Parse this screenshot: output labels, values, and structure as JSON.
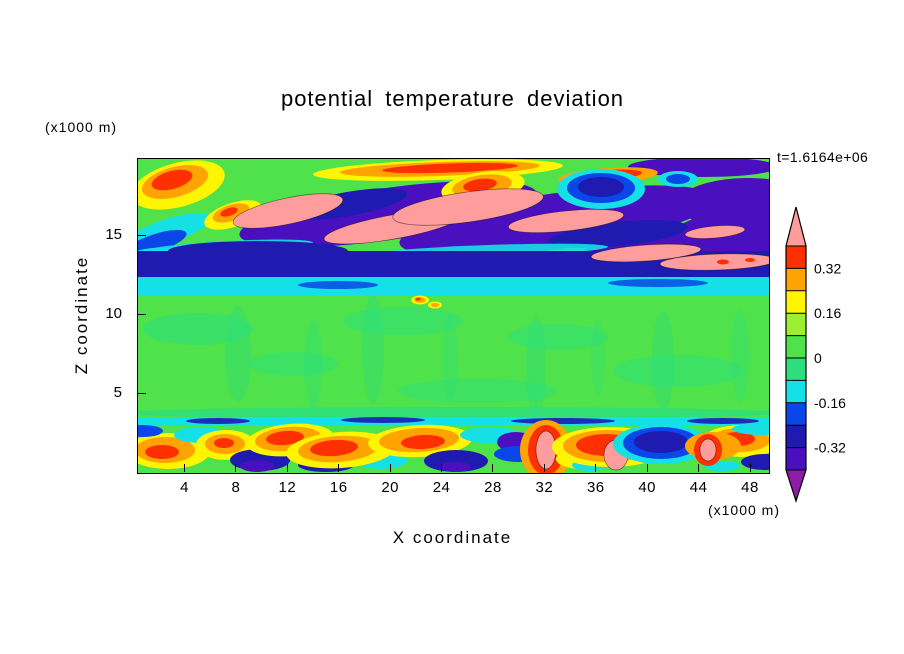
{
  "title": "potential temperature deviation",
  "time_label": "t=1.6164e+06",
  "axes": {
    "x": {
      "label": "X coordinate",
      "units": "(x1000 m)",
      "ticks": [
        4,
        8,
        12,
        16,
        20,
        24,
        28,
        32,
        36,
        40,
        44,
        48
      ],
      "range": [
        0.3,
        49.4
      ]
    },
    "z": {
      "label": "Z coordinate",
      "units": "(x1000 m)",
      "ticks": [
        5,
        10,
        15
      ],
      "range": [
        0,
        19.9
      ]
    }
  },
  "colorbar": {
    "orientation": "vertical",
    "tick_labels": [
      "0.32",
      "0.16",
      "0",
      "-0.16",
      "-0.32"
    ],
    "bands_top_to_bottom": [
      "red",
      "orange",
      "yellow",
      "greenyellow",
      "green",
      "teal",
      "cyan",
      "blue",
      "navy",
      "violet"
    ],
    "arrow_top_color": "salmon",
    "arrow_bottom_color": "purple"
  },
  "chart_data": {
    "type": "heatmap",
    "subtype": "filled_contour",
    "title": "potential temperature deviation",
    "xlabel": "X coordinate (x1000 m)",
    "ylabel": "Z coordinate (x1000 m)",
    "time_label": "t=1.6164e+06",
    "x_ticks": [
      4,
      8,
      12,
      16,
      20,
      24,
      28,
      32,
      36,
      40,
      44,
      48
    ],
    "y_ticks": [
      5,
      10,
      15
    ],
    "x_range": [
      0.3,
      49.4
    ],
    "y_range": [
      0,
      19.9
    ],
    "contour_interval": 0.08,
    "levels": [
      -0.4,
      -0.32,
      -0.24,
      -0.16,
      -0.08,
      0,
      0.08,
      0.16,
      0.24,
      0.32,
      0.4
    ],
    "band_colors_ascending": [
      "violet",
      "navy",
      "blue",
      "cyan",
      "teal",
      "green",
      "greenyellow",
      "yellow",
      "orange",
      "red"
    ],
    "below_min_color": "purple",
    "above_max_color": "salmon",
    "colorbar_labels": [
      "0.32",
      "0.16",
      "0",
      "-0.16",
      "-0.32"
    ],
    "colors": {
      "purple": "#8E1CA8",
      "violet": "#4A10C0",
      "navy": "#1F1AB0",
      "blue": "#0A46E8",
      "cyan": "#15E0E5",
      "teal": "#2BDF7E",
      "green": "#4FE24A",
      "greenyellow": "#9CEF2F",
      "yellow": "#FFF500",
      "orange": "#FFA300",
      "red": "#FF3000",
      "salmon": "#FF9D9D"
    },
    "regions": [
      "z ~13-20 km: wavy breaking-wave structures; elongated salmon (>0.4) lenses embedded in violet/navy negative anomalies, red/orange/yellow warm patches near top-left and top-center, deep blue blob upper right",
      "z ~12-13 km: continuous navy negative band over a cyan band spanning the full domain",
      "z ~4-11 km: nearly uniform green (~0) with faint teal streaks and two tiny warm specks near x=21-23",
      "z ~0-4 km: turbulent boundary layer; alternating red/orange/yellow plumes, salmon cores, navy/violet pockets and cyan patches above a thin cyan lid"
    ],
    "scene": {
      "background": "green",
      "shapes": [
        [
          "e",
          60,
          170,
          55,
          16,
          0,
          "teal",
          0.55
        ],
        [
          "e",
          155,
          205,
          45,
          12,
          0,
          "teal",
          0.5
        ],
        [
          "e",
          265,
          162,
          60,
          14,
          0,
          "teal",
          0.5
        ],
        [
          "e",
          420,
          178,
          50,
          13,
          0,
          "teal",
          0.5
        ],
        [
          "e",
          540,
          212,
          65,
          16,
          0,
          "teal",
          0.5
        ],
        [
          "e",
          340,
          232,
          80,
          12,
          0,
          "teal",
          0.45
        ],
        [
          "e",
          100,
          195,
          13,
          48,
          0,
          "teal",
          0.4
        ],
        [
          "e",
          175,
          205,
          9,
          45,
          0,
          "teal",
          0.35
        ],
        [
          "e",
          235,
          190,
          11,
          55,
          0,
          "teal",
          0.4
        ],
        [
          "e",
          312,
          198,
          8,
          42,
          0,
          "teal",
          0.35
        ],
        [
          "e",
          398,
          208,
          10,
          50,
          0,
          "teal",
          0.4
        ],
        [
          "e",
          460,
          198,
          7,
          38,
          0,
          "teal",
          0.3
        ],
        [
          "e",
          525,
          202,
          11,
          50,
          0,
          "teal",
          0.4
        ],
        [
          "e",
          602,
          197,
          9,
          46,
          0,
          "teal",
          0.35
        ],
        [
          "e",
          315,
          254,
          330,
          6,
          0,
          "teal",
          0.8
        ],
        [
          "e",
          30,
          72,
          45,
          12,
          -18,
          "cyan"
        ],
        [
          "e",
          18,
          84,
          32,
          9,
          -18,
          "blue"
        ],
        [
          "e",
          8,
          100,
          30,
          10,
          -10,
          "cyan"
        ],
        [
          "e",
          250,
          55,
          150,
          26,
          -8,
          "violet"
        ],
        [
          "e",
          420,
          62,
          160,
          28,
          -8,
          "violet"
        ],
        [
          "e",
          555,
          85,
          110,
          20,
          -5,
          "violet"
        ],
        [
          "e",
          565,
          8,
          75,
          10,
          0,
          "violet"
        ],
        [
          "e",
          610,
          45,
          70,
          26,
          0,
          "violet"
        ],
        [
          "e",
          600,
          72,
          60,
          18,
          0,
          "violet"
        ],
        [
          "e",
          210,
          45,
          60,
          12,
          -10,
          "navy"
        ],
        [
          "e",
          480,
          75,
          70,
          12,
          -6,
          "navy"
        ],
        [
          "e",
          90,
          88,
          85,
          6,
          -3,
          "cyan",
          0.9
        ],
        [
          "e",
          350,
          92,
          120,
          6,
          -2,
          "cyan",
          0.9
        ],
        [
          "r",
          -5,
          92,
          641,
          26,
          0,
          "navy"
        ],
        [
          "e",
          120,
          92,
          90,
          10,
          0,
          "navy"
        ],
        [
          "e",
          400,
          116,
          120,
          9,
          0,
          "navy"
        ],
        [
          "r",
          -5,
          118,
          641,
          18,
          0,
          "cyan"
        ],
        [
          "e",
          200,
          126,
          40,
          4,
          0,
          "blue",
          0.85
        ],
        [
          "e",
          520,
          124,
          50,
          4,
          0,
          "blue",
          0.85
        ],
        [
          "e",
          40,
          26,
          48,
          22,
          -15,
          "yellow"
        ],
        [
          "e",
          37,
          23,
          34,
          15,
          -15,
          "orange"
        ],
        [
          "e",
          34,
          21,
          21,
          9,
          -15,
          "red"
        ],
        [
          "e",
          95,
          56,
          30,
          12,
          -18,
          "yellow"
        ],
        [
          "e",
          93,
          54,
          19,
          8,
          -18,
          "orange"
        ],
        [
          "e",
          91,
          53,
          9,
          4,
          -18,
          "red"
        ],
        [
          "e",
          300,
          11,
          125,
          10,
          -2,
          "yellow"
        ],
        [
          "e",
          302,
          10,
          100,
          7,
          -2,
          "orange"
        ],
        [
          "e",
          312,
          9,
          68,
          4.5,
          -2,
          "red"
        ],
        [
          "e",
          345,
          28,
          42,
          15,
          -8,
          "yellow"
        ],
        [
          "e",
          344,
          27,
          30,
          11,
          -8,
          "orange"
        ],
        [
          "e",
          342,
          26,
          17,
          6,
          -8,
          "red"
        ],
        [
          "e",
          470,
          17,
          50,
          8,
          -4,
          "orange"
        ],
        [
          "e",
          472,
          16,
          32,
          5,
          -4,
          "red"
        ],
        [
          "e",
          463,
          30,
          44,
          20,
          0,
          "cyan"
        ],
        [
          "e",
          463,
          29,
          34,
          15,
          0,
          "blue"
        ],
        [
          "e",
          463,
          28,
          23,
          10,
          0,
          "navy"
        ],
        [
          "e",
          540,
          20,
          20,
          8,
          0,
          "cyan"
        ],
        [
          "e",
          540,
          20,
          12,
          5,
          0,
          "blue"
        ],
        [
          "e",
          150,
          52,
          56,
          13,
          -12,
          "salmon",
          1,
          1
        ],
        [
          "e",
          255,
          68,
          70,
          12,
          -10,
          "salmon",
          1,
          1
        ],
        [
          "e",
          330,
          48,
          76,
          15,
          -8,
          "salmon",
          1,
          1
        ],
        [
          "e",
          428,
          62,
          58,
          10,
          -6,
          "salmon",
          1,
          1
        ],
        [
          "e",
          508,
          94,
          55,
          8,
          -4,
          "salmon",
          1,
          1
        ],
        [
          "e",
          580,
          103,
          58,
          8,
          -2,
          "salmon",
          1,
          1
        ],
        [
          "e",
          577,
          73,
          30,
          6,
          -5,
          "salmon",
          1,
          1
        ],
        [
          "e",
          585,
          103,
          6,
          2.5,
          0,
          "red"
        ],
        [
          "e",
          612,
          101,
          5,
          2,
          0,
          "red"
        ],
        [
          "e",
          282,
          141,
          9,
          4.5,
          0,
          "yellow"
        ],
        [
          "e",
          282,
          141,
          5.5,
          2.8,
          0,
          "orange"
        ],
        [
          "e",
          280,
          140,
          2.8,
          1.5,
          0,
          "red"
        ],
        [
          "e",
          297,
          146,
          7,
          3.5,
          0,
          "yellow"
        ],
        [
          "e",
          297,
          146,
          4,
          2,
          0,
          "orange"
        ],
        [
          "r",
          -5,
          258,
          641,
          9,
          0,
          "cyan"
        ],
        [
          "e",
          80,
          262,
          32,
          3,
          0,
          "navy",
          0.9
        ],
        [
          "e",
          245,
          261,
          42,
          3,
          0,
          "navy",
          0.9
        ],
        [
          "e",
          425,
          262,
          52,
          3,
          0,
          "navy",
          0.9
        ],
        [
          "e",
          585,
          262,
          36,
          3,
          0,
          "navy",
          0.9
        ],
        [
          "e",
          30,
          292,
          42,
          18,
          0,
          "yellow"
        ],
        [
          "e",
          27,
          291,
          30,
          13,
          0,
          "orange"
        ],
        [
          "e",
          24,
          293,
          17,
          7,
          0,
          "red"
        ],
        [
          "e",
          62,
          276,
          26,
          8,
          0,
          "cyan"
        ],
        [
          "e",
          5,
          272,
          20,
          6,
          0,
          "blue"
        ],
        [
          "e",
          88,
          286,
          30,
          15,
          0,
          "yellow"
        ],
        [
          "e",
          87,
          285,
          20,
          10,
          0,
          "orange"
        ],
        [
          "e",
          86,
          284,
          10,
          5,
          0,
          "red"
        ],
        [
          "e",
          122,
          301,
          30,
          11,
          0,
          "navy"
        ],
        [
          "e",
          119,
          307,
          17,
          6,
          0,
          "violet"
        ],
        [
          "e",
          152,
          281,
          44,
          16,
          -5,
          "yellow"
        ],
        [
          "e",
          150,
          280,
          33,
          12,
          -5,
          "orange"
        ],
        [
          "e",
          147,
          279,
          19,
          7,
          -5,
          "red"
        ],
        [
          "e",
          188,
          306,
          28,
          7,
          0,
          "navy"
        ],
        [
          "e",
          243,
          301,
          26,
          9,
          0,
          "cyan"
        ],
        [
          "e",
          203,
          291,
          55,
          18,
          -4,
          "yellow"
        ],
        [
          "e",
          200,
          290,
          40,
          13,
          -4,
          "orange"
        ],
        [
          "e",
          196,
          289,
          24,
          8,
          -4,
          "red"
        ],
        [
          "e",
          282,
          282,
          52,
          16,
          -3,
          "yellow"
        ],
        [
          "e",
          281,
          281,
          40,
          12,
          -3,
          "orange"
        ],
        [
          "e",
          285,
          283,
          22,
          7,
          -3,
          "red"
        ],
        [
          "e",
          318,
          302,
          32,
          11,
          0,
          "navy"
        ],
        [
          "e",
          317,
          308,
          16,
          5,
          0,
          "violet"
        ],
        [
          "e",
          352,
          276,
          30,
          8,
          0,
          "cyan"
        ],
        [
          "e",
          378,
          283,
          19,
          10,
          0,
          "violet"
        ],
        [
          "e",
          380,
          295,
          24,
          8,
          0,
          "blue"
        ],
        [
          "e",
          408,
          291,
          26,
          30,
          0,
          "orange"
        ],
        [
          "e",
          408,
          291,
          18,
          25,
          0,
          "red"
        ],
        [
          "e",
          408,
          291,
          10,
          19,
          0,
          "salmon",
          1,
          1
        ],
        [
          "e",
          444,
          300,
          26,
          10,
          0,
          "yellow"
        ],
        [
          "e",
          452,
          306,
          18,
          6,
          0,
          "cyan"
        ],
        [
          "e",
          472,
          288,
          58,
          20,
          0,
          "yellow"
        ],
        [
          "e",
          470,
          287,
          45,
          16,
          0,
          "orange"
        ],
        [
          "e",
          468,
          286,
          30,
          11,
          0,
          "red"
        ],
        [
          "e",
          478,
          296,
          12,
          15,
          0,
          "salmon",
          1,
          1
        ],
        [
          "e",
          523,
          285,
          48,
          20,
          0,
          "cyan"
        ],
        [
          "e",
          523,
          284,
          38,
          16,
          0,
          "blue"
        ],
        [
          "e",
          523,
          283,
          27,
          11,
          0,
          "navy"
        ],
        [
          "e",
          604,
          282,
          40,
          16,
          0,
          "yellow"
        ],
        [
          "e",
          602,
          281,
          30,
          12,
          0,
          "orange"
        ],
        [
          "e",
          600,
          280,
          17,
          7,
          0,
          "red"
        ],
        [
          "e",
          624,
          270,
          30,
          6,
          0,
          "cyan"
        ],
        [
          "e",
          627,
          303,
          24,
          8,
          0,
          "navy"
        ],
        [
          "e",
          584,
          307,
          18,
          5,
          0,
          "cyan"
        ],
        [
          "e",
          575,
          287,
          28,
          14,
          0,
          "orange"
        ],
        [
          "e",
          570,
          291,
          14,
          16,
          0,
          "red"
        ],
        [
          "e",
          570,
          291,
          8,
          11,
          0,
          "salmon",
          1,
          1
        ]
      ]
    }
  }
}
